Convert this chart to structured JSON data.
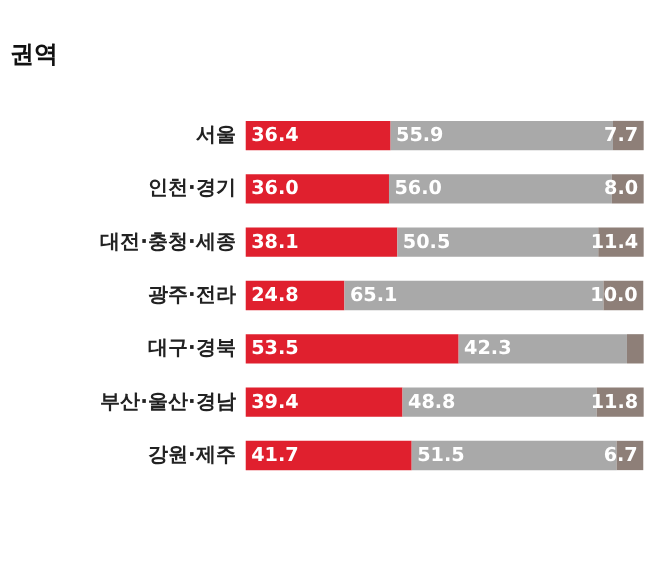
{
  "chart_data": {
    "type": "bar",
    "orientation": "horizontal",
    "stacked": true,
    "title": "권역",
    "categories": [
      "서울",
      "인천·경기",
      "대전·충청·세종",
      "광주·전라",
      "대구·경북",
      "부산·울산·경남",
      "강원·제주"
    ],
    "series": [
      {
        "color": "#e0202e",
        "values": [
          36.4,
          36.0,
          38.1,
          24.8,
          53.5,
          39.4,
          41.7
        ],
        "value_labels": [
          "36.4",
          "36.0",
          "38.1",
          "24.8",
          "53.5",
          "39.4",
          "41.7"
        ]
      },
      {
        "color": "#a9a9a9",
        "values": [
          55.9,
          56.0,
          50.5,
          65.1,
          42.3,
          48.8,
          51.5
        ],
        "value_labels": [
          "55.9",
          "56.0",
          "50.5",
          "65.1",
          "42.3",
          "48.8",
          "51.5"
        ]
      },
      {
        "color": "#8e7f78",
        "values": [
          7.7,
          8.0,
          11.4,
          10.0,
          4.2,
          11.8,
          6.7
        ],
        "value_labels": [
          "7.7",
          "8.0",
          "11.4",
          "10.0",
          null,
          "11.8",
          "6.7"
        ]
      }
    ],
    "xlim": [
      0,
      100
    ],
    "tick_labels": "y",
    "grid": false
  }
}
